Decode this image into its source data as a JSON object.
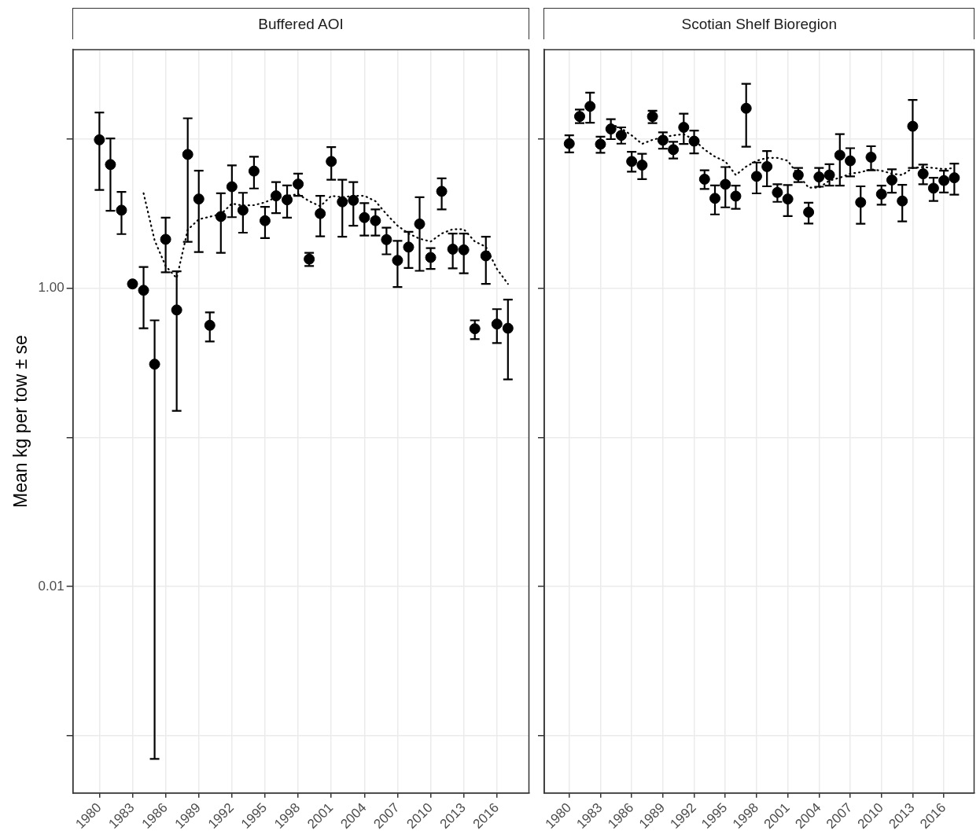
{
  "chart_data": [
    {
      "type": "scatter",
      "title": "Buffered AOI",
      "ylabel": "Mean kg per tow ± se",
      "log": true,
      "grid": true,
      "x": [
        1980,
        1981,
        1982,
        1983,
        1984,
        1985,
        1986,
        1987,
        1988,
        1989,
        1990,
        1991,
        1992,
        1993,
        1994,
        1995,
        1996,
        1997,
        1998,
        1999,
        2000,
        2001,
        2002,
        2003,
        2004,
        2005,
        2006,
        2007,
        2008,
        2009,
        2010,
        2011,
        2012,
        2013,
        2014,
        2015,
        2016,
        2017
      ],
      "xlim": [
        1977.6,
        2018.9
      ],
      "xticks": [
        1980,
        1983,
        1986,
        1989,
        1992,
        1995,
        1998,
        2001,
        2004,
        2007,
        2010,
        2013,
        2016
      ],
      "ylim": [
        0.000413,
        39.8
      ],
      "yticks": [
        {
          "value": 0.001,
          "label": null
        },
        {
          "value": 0.01,
          "label": "0.01"
        },
        {
          "value": 0.1,
          "label": null
        },
        {
          "value": 1,
          "label": "1.00"
        },
        {
          "value": 10,
          "label": null
        }
      ],
      "series": [
        {
          "type": "scatter",
          "color": "#000000",
          "marker": "circle",
          "values": [
            9.9,
            6.76,
            3.34,
            1.07,
            0.97,
            0.31,
            2.13,
            0.716,
            7.9,
            3.97,
            0.565,
            3.03,
            4.8,
            3.34,
            6.11,
            2.84,
            4.17,
            3.92,
            5.0,
            1.57,
            3.17,
            7.09,
            3.8,
            3.89,
            2.98,
            2.84,
            2.12,
            1.54,
            1.89,
            2.7,
            1.61,
            4.47,
            1.83,
            1.81,
            0.536,
            1.65,
            0.576,
            0.54
          ],
          "errors": [
            [
              4.57,
              15.1
            ],
            [
              3.31,
              10.1
            ],
            [
              2.31,
              4.43
            ],
            null,
            [
              0.54,
              1.39
            ],
            [
              0.0007,
              0.61
            ],
            [
              1.28,
              2.98
            ],
            [
              0.151,
              1.3
            ],
            [
              2.05,
              13.8
            ],
            [
              1.75,
              6.15
            ],
            [
              0.44,
              0.69
            ],
            [
              1.73,
              4.34
            ],
            [
              3.0,
              6.67
            ],
            [
              2.36,
              4.37
            ],
            [
              4.67,
              7.62
            ],
            [
              2.17,
              3.52
            ],
            [
              3.19,
              5.16
            ],
            [
              2.98,
              4.9
            ],
            [
              4.17,
              5.87
            ],
            [
              1.41,
              1.73
            ],
            [
              2.23,
              4.17
            ],
            [
              5.35,
              8.84
            ],
            [
              2.22,
              5.35
            ],
            [
              2.63,
              5.16
            ],
            [
              2.26,
              3.73
            ],
            [
              2.26,
              3.38
            ],
            [
              1.69,
              2.55
            ],
            [
              1.02,
              2.08
            ],
            [
              1.37,
              2.39
            ],
            [
              1.31,
              4.08
            ],
            [
              1.35,
              1.86
            ],
            [
              3.38,
              5.46
            ],
            [
              1.36,
              2.33
            ],
            [
              1.26,
              2.33
            ],
            [
              0.456,
              0.61
            ],
            [
              1.07,
              2.22
            ],
            [
              0.43,
              0.725
            ],
            [
              0.245,
              0.84
            ]
          ]
        },
        {
          "type": "line",
          "color": "#000000",
          "line_style": "dotted",
          "x": [
            1984,
            1985,
            1986,
            1987,
            1988,
            1989,
            1990,
            1991,
            1992,
            1993,
            1994,
            1995,
            1996,
            1997,
            1998,
            1999,
            2000,
            2001,
            2002,
            2003,
            2004,
            2005,
            2006,
            2007,
            2008,
            2009,
            2010,
            2011,
            2012,
            2013,
            2014,
            2015,
            2016,
            2017
          ],
          "values": [
            4.34,
            2.1,
            1.41,
            1.17,
            2.47,
            2.9,
            3.02,
            3.14,
            3.7,
            3.59,
            3.61,
            3.77,
            4.08,
            4.17,
            4.28,
            3.84,
            3.55,
            4.17,
            4.08,
            4.17,
            4.17,
            3.84,
            3.14,
            2.63,
            2.33,
            2.15,
            2.06,
            2.33,
            2.49,
            2.49,
            2.06,
            1.9,
            1.35,
            1.07
          ]
        }
      ]
    },
    {
      "type": "scatter",
      "title": "Scotian Shelf Bioregion",
      "log": true,
      "grid": true,
      "tick_labels": "x",
      "x": [
        1980,
        1981,
        1982,
        1983,
        1984,
        1985,
        1986,
        1987,
        1988,
        1989,
        1990,
        1991,
        1992,
        1993,
        1994,
        1995,
        1996,
        1997,
        1998,
        1999,
        2000,
        2001,
        2002,
        2003,
        2004,
        2005,
        2006,
        2007,
        2008,
        2009,
        2010,
        2011,
        2012,
        2013,
        2014,
        2015,
        2016,
        2017
      ],
      "xlim": [
        1977.6,
        2018.9
      ],
      "xticks": [
        1980,
        1983,
        1986,
        1989,
        1992,
        1995,
        1998,
        2001,
        2004,
        2007,
        2010,
        2013,
        2016
      ],
      "ylim": [
        0.000413,
        39.8
      ],
      "yticks": [
        {
          "value": 0.001,
          "label": null
        },
        {
          "value": 0.01,
          "label": null
        },
        {
          "value": 0.1,
          "label": null
        },
        {
          "value": 1,
          "label": null
        },
        {
          "value": 10,
          "label": null
        }
      ],
      "series": [
        {
          "type": "scatter",
          "color": "#000000",
          "marker": "circle",
          "values": [
            9.33,
            14.2,
            16.6,
            9.25,
            11.7,
            10.6,
            7.09,
            6.7,
            14.2,
            9.84,
            8.51,
            12.0,
            9.7,
            5.39,
            4.01,
            4.98,
            4.15,
            16.1,
            5.63,
            6.55,
            4.39,
            3.97,
            5.75,
            3.24,
            5.58,
            5.75,
            7.81,
            7.16,
            3.77,
            7.57,
            4.28,
            5.32,
            3.85,
            12.2,
            5.86,
            4.69,
            5.28,
            5.51
          ],
          "errors": [
            [
              8.15,
              10.6
            ],
            [
              12.8,
              15.8
            ],
            [
              12.9,
              20.5
            ],
            [
              8.11,
              10.4
            ],
            [
              10.0,
              13.6
            ],
            [
              9.33,
              12.0
            ],
            [
              6.06,
              8.22
            ],
            [
              5.39,
              7.98
            ],
            [
              12.8,
              15.5
            ],
            [
              8.63,
              11.1
            ],
            [
              7.41,
              9.59
            ],
            [
              9.29,
              14.8
            ],
            [
              8.02,
              11.4
            ],
            [
              4.63,
              6.19
            ],
            [
              3.13,
              4.9
            ],
            [
              3.49,
              6.5
            ],
            [
              3.41,
              4.88
            ],
            [
              8.9,
              23.5
            ],
            [
              4.33,
              6.97
            ],
            [
              4.83,
              8.33
            ],
            [
              3.8,
              4.98
            ],
            [
              3.05,
              4.92
            ],
            [
              5.16,
              6.41
            ],
            [
              2.72,
              3.75
            ],
            [
              4.8,
              6.41
            ],
            [
              4.88,
              6.79
            ],
            [
              4.88,
              10.8
            ],
            [
              5.63,
              8.7
            ],
            [
              2.71,
              4.83
            ],
            [
              6.19,
              8.97
            ],
            [
              3.64,
              4.88
            ],
            [
              4.38,
              6.28
            ],
            [
              2.81,
              4.94
            ],
            [
              6.41,
              18.3
            ],
            [
              4.98,
              6.76
            ],
            [
              3.85,
              5.51
            ],
            [
              4.39,
              6.14
            ],
            [
              4.24,
              6.86
            ]
          ]
        },
        {
          "type": "line",
          "color": "#000000",
          "line_style": "dotted",
          "x": [
            1984,
            1985,
            1986,
            1987,
            1988,
            1989,
            1990,
            1991,
            1992,
            1993,
            1994,
            1995,
            1996,
            1997,
            1998,
            1999,
            2000,
            2001,
            2002,
            2003,
            2004,
            2005,
            2006,
            2007,
            2008,
            2009,
            2010,
            2011,
            2012,
            2013,
            2014,
            2015,
            2016,
            2017
          ],
          "values": [
            12.6,
            11.8,
            10.6,
            9.29,
            9.9,
            10.3,
            10.6,
            10.8,
            9.9,
            8.51,
            7.63,
            7.09,
            5.75,
            6.55,
            7.16,
            7.49,
            7.49,
            7.16,
            5.75,
            4.73,
            4.73,
            5.28,
            5.51,
            5.87,
            6.0,
            6.28,
            6.14,
            5.87,
            5.75,
            6.41,
            6.5,
            6.41,
            6.3,
            6.41
          ]
        }
      ]
    }
  ]
}
